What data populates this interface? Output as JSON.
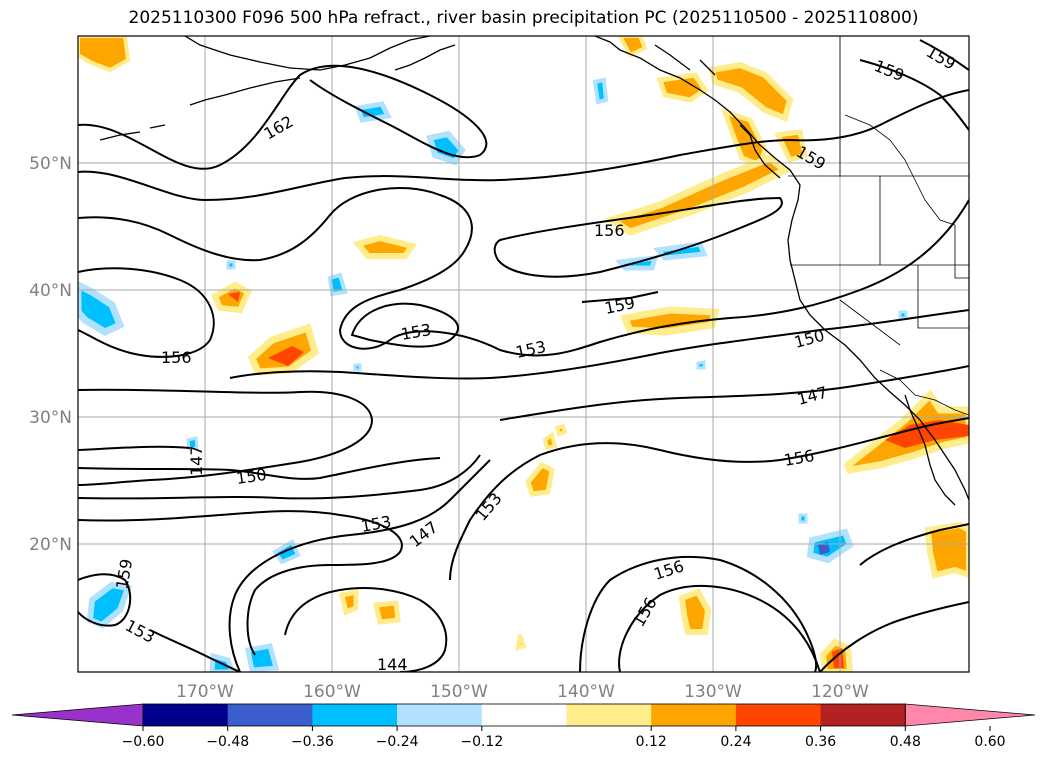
{
  "title": "2025110300 F096 500 hPa refract., river basin precipitation PC (2025110500 - 2025110800)",
  "lat_labels": [
    "50°N",
    "40°N",
    "30°N",
    "20°N"
  ],
  "lon_labels": [
    "170°W",
    "160°W",
    "150°W",
    "140°W",
    "130°W",
    "120°W"
  ],
  "contour_labels": [
    "162",
    "159",
    "159",
    "156",
    "159",
    "159",
    "153",
    "156",
    "153",
    "150",
    "147",
    "147",
    "150",
    "156",
    "153",
    "147",
    "153",
    "156",
    "156",
    "159",
    "153",
    "144"
  ],
  "colorbar": {
    "colors": [
      "#9932cc",
      "#00008b",
      "#3a5fcd",
      "#00bfff",
      "#b0e2ff",
      "#ffffff",
      "#ffec8b",
      "#ffa500",
      "#ff4500",
      "#b22222",
      "#ff88aa"
    ],
    "ticks": [
      "−0.60",
      "−0.48",
      "−0.36",
      "−0.24",
      "−0.12",
      "0.12",
      "0.24",
      "0.36",
      "0.48",
      "0.60"
    ]
  }
}
